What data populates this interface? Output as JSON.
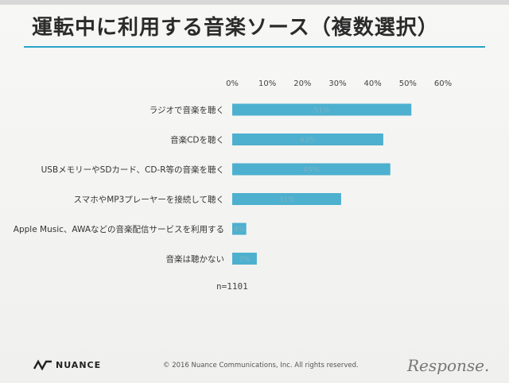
{
  "title": "運転中に利用する音楽ソース（複数選択）",
  "n_label": "n=1101",
  "footer": {
    "logo_text": "NUANCE",
    "copyright": "© 2016 Nuance Communications, Inc. All rights reserved.",
    "watermark": "Response."
  },
  "colors": {
    "bar": "#4db0cf",
    "accent_rule": "#2aa3c8"
  },
  "chart_data": {
    "type": "bar",
    "orientation": "horizontal",
    "xlim": [
      0,
      60
    ],
    "ticks": [
      "0%",
      "10%",
      "20%",
      "30%",
      "40%",
      "50%",
      "60%"
    ],
    "tick_values": [
      0,
      10,
      20,
      30,
      40,
      50,
      60
    ],
    "categories": [
      "ラジオで音楽を聴く",
      "音楽CDを聴く",
      "USBメモリーやSDカード、CD-R等の音楽を聴く",
      "スマホやMP3プレーヤーを接続して聴く",
      "Apple Music、AWAなどの音楽配信サービスを利用する",
      "音楽は聴かない"
    ],
    "values": [
      51,
      43,
      45,
      31,
      4,
      7
    ],
    "labels": [
      "51%",
      "43%",
      "45%",
      "31%",
      "4%",
      "7%"
    ],
    "legend": "none",
    "grid": false
  }
}
